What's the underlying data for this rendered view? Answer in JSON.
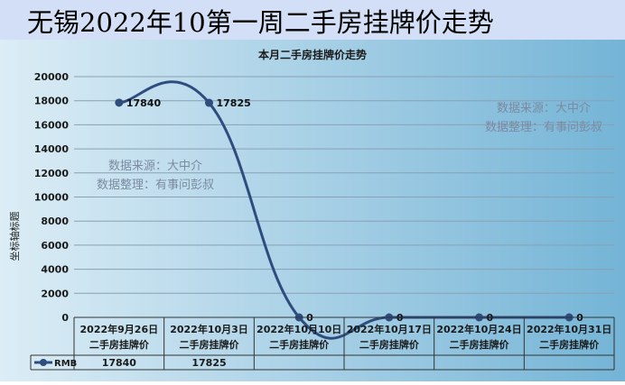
{
  "page_title": "无锡2022年10第一周二手房挂牌价走势",
  "chart_data": {
    "type": "line",
    "title": "本月二手房挂牌价走势",
    "ylabel": "坐标轴标题",
    "xlabel": "",
    "ylim": [
      0,
      20000
    ],
    "y_ticks": [
      0,
      2000,
      4000,
      6000,
      8000,
      10000,
      12000,
      14000,
      16000,
      18000,
      20000
    ],
    "categories": [
      [
        "2022年9月26日",
        "二手房挂牌价"
      ],
      [
        "2022年10月3日",
        "二手房挂牌价"
      ],
      [
        "2022年10月10日",
        "二手房挂牌价"
      ],
      [
        "2022年10月17日",
        "二手房挂牌价"
      ],
      [
        "2022年10月24日",
        "二手房挂牌价"
      ],
      [
        "2022年10月31日",
        "二手房挂牌价"
      ]
    ],
    "series": [
      {
        "name": "RMB",
        "values": [
          17840,
          17825,
          0,
          0,
          0,
          0
        ],
        "table_values": [
          "17840",
          "17825",
          "",
          "",
          "",
          ""
        ]
      }
    ],
    "grid": true,
    "legend": "data-table",
    "smooth": true,
    "watermarks": [
      {
        "line1": "数据来源：大中介",
        "line2": "数据整理：有事问彭叔"
      },
      {
        "line1": "数据来源：大中介",
        "line2": "数据整理：有事问彭叔"
      }
    ],
    "colors": {
      "line": "#2e4d7e",
      "bg_light": "#dcedf6",
      "bg_dark": "#74b4d6",
      "grid": "#8aa0b4",
      "watermark": "#7c8aa0"
    }
  }
}
